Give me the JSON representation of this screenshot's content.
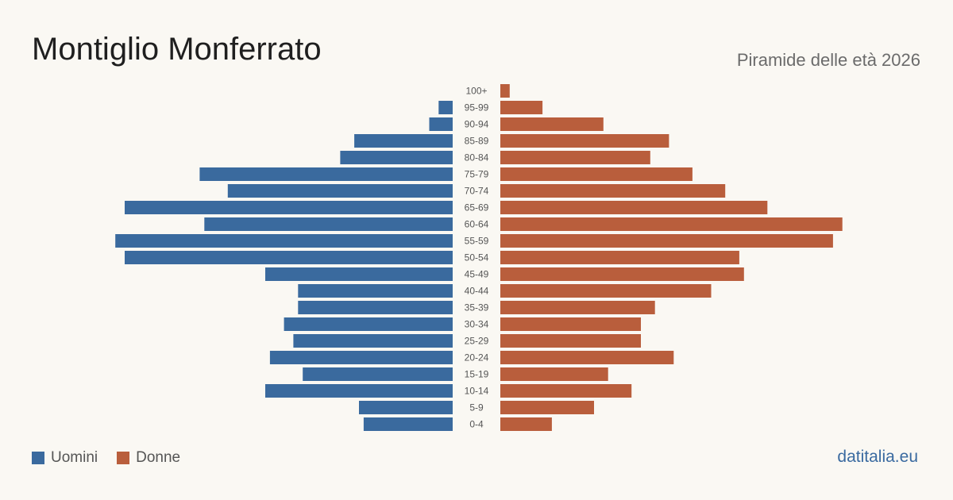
{
  "title": "Montiglio Monferrato",
  "subtitle": "Piramide delle età 2026",
  "source": "datitalia.eu",
  "colors": {
    "male": "#3a6a9e",
    "female": "#b95e3c",
    "background": "#faf8f3"
  },
  "legend": {
    "male_label": "Uomini",
    "female_label": "Donne"
  },
  "chart_data": {
    "type": "bar",
    "orientation": "horizontal-diverging",
    "categories": [
      "100+",
      "95-99",
      "90-94",
      "85-89",
      "80-84",
      "75-79",
      "70-74",
      "65-69",
      "60-64",
      "55-59",
      "50-54",
      "45-49",
      "40-44",
      "35-39",
      "30-34",
      "25-29",
      "20-24",
      "15-19",
      "10-14",
      "5-9",
      "0-4"
    ],
    "series": [
      {
        "name": "Uomini",
        "values": [
          0,
          3,
          5,
          21,
          24,
          54,
          48,
          70,
          53,
          72,
          70,
          40,
          33,
          33,
          36,
          34,
          39,
          32,
          40,
          20,
          19
        ]
      },
      {
        "name": "Donne",
        "values": [
          2,
          9,
          22,
          36,
          32,
          41,
          48,
          57,
          73,
          71,
          51,
          52,
          45,
          33,
          30,
          30,
          37,
          23,
          28,
          20,
          11
        ]
      }
    ],
    "legend_position": "bottom-left",
    "grid": false
  }
}
